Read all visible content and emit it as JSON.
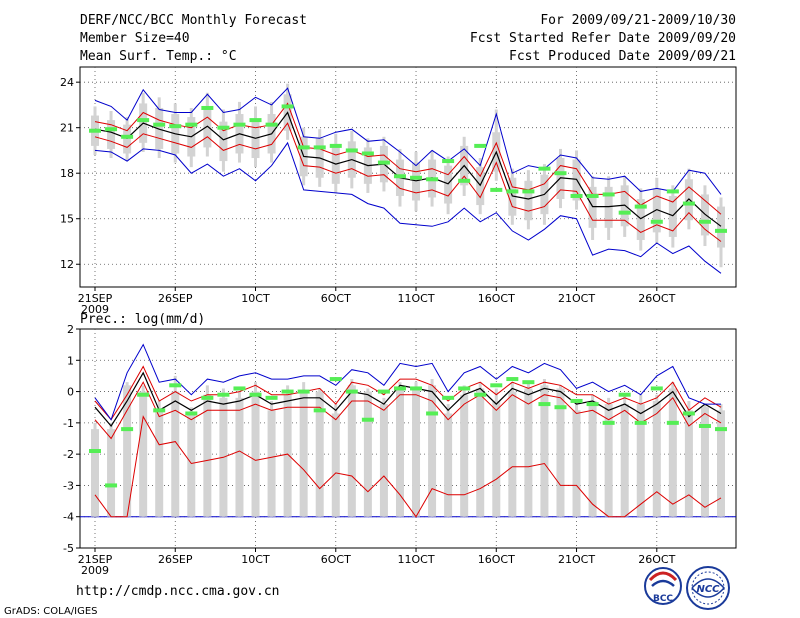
{
  "header": {
    "left": [
      "DERF/NCC/BCC Monthly Forecast",
      "Member Size=40",
      "Mean Surf. Temp.: °C"
    ],
    "right": [
      "For 2009/09/21-2009/10/30",
      "Fcst Started Refer Date 2009/09/20",
      "Fcst Produced Date 2009/09/21"
    ]
  },
  "panel2_label": "Prec.: log(mm/d)",
  "footer": {
    "url": "http://cmdp.ncc.cma.gov.cn",
    "credit": "GrADS: COLA/IGES"
  },
  "logos": {
    "bcc": "BCC",
    "ncc": "NCC"
  },
  "colors": {
    "box": "#d3d3d3",
    "median": "#55ee55",
    "mean": "#000000",
    "inner": "#dd0000",
    "outer": "#0000cc",
    "grid": "#555555"
  },
  "chart_data": [
    {
      "type": "line",
      "title": "Mean Surf. Temp.: °C",
      "ylim": [
        10.5,
        25
      ],
      "yticks": [
        12,
        15,
        18,
        21,
        24
      ],
      "xlabels": [
        "21SEP",
        "26SEP",
        "10CT",
        "6OCT",
        "11OCT",
        "16OCT",
        "21OCT",
        "26OCT"
      ],
      "xlabel_year": "2009",
      "xlabel_days": [
        1,
        6,
        11,
        16,
        21,
        26,
        31,
        36
      ],
      "days": 40,
      "series": [
        {
          "name": "mean",
          "values": [
            20.9,
            20.7,
            20.3,
            21.3,
            20.9,
            20.6,
            20.4,
            21.1,
            20.2,
            20.6,
            20.3,
            20.6,
            22.0,
            19.1,
            19.0,
            18.6,
            18.9,
            18.5,
            18.6,
            17.7,
            17.5,
            17.7,
            17.3,
            18.5,
            17.2,
            19.4,
            16.5,
            16.3,
            16.6,
            17.7,
            17.6,
            15.8,
            15.8,
            15.9,
            15.0,
            15.6,
            15.2,
            16.3,
            15.3,
            14.5
          ]
        },
        {
          "name": "inner_upper",
          "values": [
            21.4,
            21.2,
            20.8,
            22.0,
            21.5,
            21.2,
            21.0,
            21.7,
            20.8,
            21.2,
            21.0,
            21.2,
            22.6,
            19.7,
            19.6,
            19.2,
            19.5,
            19.1,
            19.2,
            18.3,
            18.1,
            18.3,
            17.9,
            19.1,
            17.8,
            20.0,
            17.1,
            16.9,
            17.3,
            18.5,
            18.3,
            16.6,
            16.6,
            16.8,
            15.9,
            16.5,
            16.1,
            17.1,
            16.2,
            15.3
          ]
        },
        {
          "name": "inner_lower",
          "values": [
            20.4,
            20.1,
            19.7,
            20.6,
            20.3,
            20.0,
            19.7,
            20.4,
            19.5,
            19.9,
            19.6,
            19.9,
            21.3,
            18.5,
            18.4,
            18.0,
            18.3,
            17.8,
            17.9,
            17.0,
            16.7,
            16.9,
            16.5,
            17.8,
            16.4,
            18.7,
            15.8,
            15.5,
            15.8,
            16.9,
            16.8,
            14.9,
            14.9,
            14.9,
            14.1,
            14.6,
            14.2,
            15.4,
            14.3,
            13.5
          ]
        },
        {
          "name": "outer_upper",
          "values": [
            22.8,
            22.4,
            21.5,
            23.5,
            22.2,
            22.0,
            22.0,
            23.2,
            22.0,
            22.2,
            23.0,
            22.5,
            23.6,
            20.4,
            20.3,
            20.7,
            20.9,
            20.1,
            20.2,
            19.4,
            18.5,
            19.5,
            18.8,
            19.6,
            18.5,
            21.9,
            18.0,
            18.5,
            18.3,
            19.2,
            19.0,
            17.7,
            17.6,
            17.8,
            16.8,
            17.0,
            16.8,
            18.2,
            18.0,
            16.6
          ]
        },
        {
          "name": "outer_lower",
          "values": [
            19.5,
            19.4,
            18.8,
            19.6,
            19.5,
            19.2,
            18.0,
            18.6,
            17.8,
            18.3,
            17.5,
            18.5,
            20.0,
            16.9,
            16.8,
            16.7,
            16.6,
            16.0,
            15.7,
            14.7,
            14.6,
            14.5,
            14.8,
            15.7,
            14.8,
            15.4,
            14.2,
            13.6,
            14.3,
            15.2,
            15.0,
            12.6,
            13.0,
            12.9,
            12.5,
            13.4,
            12.7,
            13.2,
            12.2,
            11.4
          ]
        }
      ],
      "boxes": {
        "high": [
          21.8,
          21.5,
          21.2,
          22.6,
          22.3,
          21.9,
          21.7,
          22.4,
          21.4,
          21.9,
          21.6,
          21.9,
          23.2,
          20.4,
          20.3,
          19.9,
          20.1,
          19.7,
          19.8,
          18.9,
          18.7,
          18.9,
          18.5,
          19.8,
          18.4,
          20.7,
          17.7,
          17.5,
          17.9,
          19.0,
          18.9,
          17.1,
          17.1,
          17.2,
          16.3,
          17.0,
          16.5,
          17.6,
          16.6,
          15.8
        ],
        "low": [
          19.8,
          19.6,
          19.3,
          20.0,
          19.6,
          19.3,
          19.1,
          19.7,
          18.8,
          19.3,
          19.0,
          19.3,
          20.8,
          17.8,
          17.7,
          17.3,
          17.7,
          17.3,
          17.4,
          16.5,
          16.2,
          16.4,
          16.0,
          17.2,
          15.9,
          18.1,
          15.2,
          14.9,
          15.3,
          16.3,
          16.2,
          14.4,
          14.4,
          14.5,
          13.6,
          14.1,
          13.8,
          14.9,
          13.9,
          13.1
        ],
        "whisker_high": [
          22.4,
          22.1,
          21.7,
          23.3,
          23.0,
          22.6,
          22.3,
          23.3,
          22.2,
          22.7,
          22.4,
          22.7,
          23.9,
          21.0,
          20.9,
          20.6,
          20.8,
          20.3,
          20.4,
          19.6,
          19.4,
          19.5,
          19.1,
          20.4,
          19.0,
          22.2,
          18.3,
          18.2,
          18.6,
          19.6,
          19.5,
          17.8,
          17.8,
          17.8,
          17.0,
          17.7,
          17.2,
          18.3,
          17.2,
          16.4
        ],
        "whisker_low": [
          19.2,
          19.0,
          18.8,
          19.4,
          19.0,
          18.7,
          18.4,
          19.1,
          18.1,
          18.7,
          18.4,
          18.7,
          20.2,
          17.2,
          17.1,
          16.7,
          17.0,
          16.7,
          16.8,
          15.8,
          15.5,
          15.8,
          15.3,
          16.5,
          15.3,
          17.5,
          14.6,
          14.3,
          14.6,
          15.7,
          15.6,
          13.6,
          13.6,
          13.8,
          12.9,
          13.4,
          13.1,
          14.3,
          13.2,
          11.8
        ],
        "median": [
          20.8,
          20.9,
          20.4,
          21.5,
          21.2,
          21.1,
          21.2,
          22.3,
          21.0,
          21.2,
          21.5,
          21.2,
          22.4,
          19.7,
          19.7,
          19.8,
          19.5,
          19.3,
          18.7,
          17.8,
          17.7,
          17.6,
          18.8,
          17.5,
          19.8,
          16.9,
          16.8,
          16.8,
          18.3,
          18.0,
          16.5,
          16.5,
          16.6,
          15.4,
          15.8,
          14.8,
          16.8,
          16.0,
          14.8,
          14.2
        ]
      }
    },
    {
      "type": "line",
      "title": "Prec.: log(mm/d)",
      "ylim": [
        -5,
        2
      ],
      "yticks": [
        -5,
        -4,
        -3,
        -2,
        -1,
        0,
        1,
        2
      ],
      "xlabels": [
        "21SEP",
        "26SEP",
        "10CT",
        "6OCT",
        "11OCT",
        "16OCT",
        "21OCT",
        "26OCT"
      ],
      "xlabel_year": "2009",
      "xlabel_days": [
        1,
        6,
        11,
        16,
        21,
        26,
        31,
        36
      ],
      "days": 40,
      "baseline": -4,
      "series": [
        {
          "name": "mean",
          "values": [
            -0.5,
            -1.1,
            -0.3,
            0.6,
            -0.6,
            -0.3,
            -0.6,
            -0.3,
            -0.4,
            -0.3,
            -0.1,
            -0.4,
            -0.3,
            -0.2,
            -0.2,
            -0.6,
            0.0,
            -0.1,
            -0.4,
            0.2,
            0.1,
            0.0,
            -0.6,
            -0.1,
            0.1,
            -0.4,
            0.1,
            -0.1,
            0.1,
            0.0,
            -0.4,
            -0.3,
            -0.6,
            -0.4,
            -0.7,
            -0.4,
            0.0,
            -0.8,
            -0.4,
            -0.7
          ]
        },
        {
          "name": "inner_upper",
          "values": [
            -0.3,
            -0.9,
            -0.1,
            0.8,
            -0.3,
            0.0,
            -0.3,
            -0.1,
            -0.1,
            0.0,
            0.2,
            -0.1,
            -0.1,
            0.0,
            0.1,
            -0.4,
            0.3,
            0.2,
            -0.1,
            0.4,
            0.4,
            0.2,
            -0.3,
            0.1,
            0.3,
            -0.1,
            0.3,
            0.1,
            0.3,
            0.2,
            -0.1,
            -0.1,
            -0.4,
            -0.2,
            -0.4,
            -0.2,
            0.3,
            -0.6,
            -0.2,
            -0.5
          ]
        },
        {
          "name": "inner_lower",
          "values": [
            -0.9,
            -1.5,
            -0.6,
            0.3,
            -0.8,
            -0.6,
            -0.9,
            -0.6,
            -0.6,
            -0.6,
            -0.4,
            -0.6,
            -0.5,
            -0.5,
            -0.5,
            -0.9,
            -0.3,
            -0.3,
            -0.6,
            -0.1,
            -0.1,
            -0.3,
            -0.9,
            -0.4,
            -0.1,
            -0.6,
            -0.1,
            -0.4,
            -0.1,
            -0.2,
            -0.7,
            -0.6,
            -0.9,
            -0.6,
            -1.0,
            -0.7,
            -0.2,
            -1.1,
            -0.7,
            -1.0
          ]
        },
        {
          "name": "extreme_lower",
          "values": [
            -3.3,
            -4.0,
            -4.0,
            -0.8,
            -1.7,
            -1.6,
            -2.3,
            -2.2,
            -2.1,
            -1.9,
            -2.2,
            -2.1,
            -2.0,
            -2.5,
            -3.1,
            -2.6,
            -2.7,
            -3.2,
            -2.7,
            -3.3,
            -4.0,
            -3.1,
            -3.3,
            -3.3,
            -3.1,
            -2.8,
            -2.4,
            -2.4,
            -2.3,
            -3.0,
            -3.0,
            -3.6,
            -4.0,
            -4.0,
            -3.6,
            -3.2,
            -3.6,
            -3.3,
            -3.7,
            -3.4
          ]
        },
        {
          "name": "outer_upper",
          "values": [
            -0.2,
            -0.9,
            0.6,
            1.5,
            0.3,
            0.4,
            -0.1,
            0.4,
            0.3,
            0.5,
            0.6,
            0.4,
            0.4,
            0.5,
            0.5,
            0.2,
            0.7,
            0.6,
            0.2,
            0.9,
            0.8,
            0.9,
            0.0,
            0.6,
            0.8,
            0.4,
            0.8,
            0.6,
            0.9,
            0.7,
            0.1,
            0.3,
            0.0,
            0.2,
            -0.1,
            0.5,
            0.8,
            -0.2,
            -0.4,
            -0.4
          ]
        }
      ],
      "boxes": {
        "high": [
          -1.2,
          -1.2,
          0.2,
          0.0,
          -0.6,
          0.0,
          -0.7,
          -0.1,
          -0.2,
          -0.2,
          0.0,
          -0.6,
          -0.1,
          0.0,
          0.0,
          -0.7,
          0.2,
          0.0,
          -0.4,
          0.1,
          0.1,
          0.2,
          -0.7,
          -0.1,
          0.1,
          -0.3,
          0.0,
          0.1,
          0.2,
          0.1,
          -0.6,
          -0.3,
          -0.4,
          -0.4,
          -0.4,
          -0.3,
          0.1,
          -0.6,
          -0.5,
          -0.6
        ],
        "low": [
          -4.0,
          -4.0,
          -4.0,
          -4.0,
          -4.0,
          -4.0,
          -4.0,
          -4.0,
          -4.0,
          -4.0,
          -4.0,
          -4.0,
          -4.0,
          -4.0,
          -4.0,
          -4.0,
          -4.0,
          -4.0,
          -4.0,
          -4.0,
          -4.0,
          -4.0,
          -4.0,
          -4.0,
          -4.0,
          -4.0,
          -4.0,
          -4.0,
          -4.0,
          -4.0,
          -4.0,
          -4.0,
          -4.0,
          -4.0,
          -4.0,
          -4.0,
          -4.0,
          -4.0,
          -4.0,
          -4.0
        ],
        "whisker_high": [
          -1.0,
          -1.0,
          0.3,
          0.2,
          -0.3,
          0.5,
          -0.5,
          0.2,
          0.1,
          0.0,
          0.3,
          -0.3,
          0.2,
          0.3,
          0.1,
          -0.4,
          0.4,
          0.1,
          -0.2,
          0.3,
          0.3,
          0.4,
          -0.4,
          0.2,
          0.3,
          0.1,
          0.3,
          0.3,
          0.4,
          0.2,
          -0.3,
          -0.1,
          -0.2,
          -0.1,
          -0.1,
          -0.1,
          0.3,
          -0.3,
          -0.4,
          -0.4
        ],
        "whisker_low": [
          -4.0,
          -4.0,
          -4.0,
          -4.0,
          -4.0,
          -4.0,
          -4.0,
          -4.0,
          -4.0,
          -4.0,
          -4.0,
          -4.0,
          -4.0,
          -4.0,
          -4.0,
          -4.0,
          -4.0,
          -4.0,
          -4.0,
          -4.0,
          -4.0,
          -4.0,
          -4.0,
          -4.0,
          -4.0,
          -4.0,
          -4.0,
          -4.0,
          -4.0,
          -4.0,
          -4.0,
          -4.0,
          -4.0,
          -4.0,
          -4.0,
          -4.0,
          -4.0,
          -4.0,
          -4.0,
          -4.0
        ],
        "median": [
          -1.9,
          -3.0,
          -1.2,
          -0.1,
          -0.6,
          0.2,
          -0.7,
          -0.2,
          -0.1,
          0.1,
          -0.1,
          -0.2,
          0.0,
          0.0,
          -0.6,
          0.4,
          0.0,
          -0.9,
          0.0,
          0.1,
          0.1,
          -0.7,
          -0.2,
          0.1,
          -0.1,
          0.2,
          0.4,
          0.3,
          -0.4,
          -0.5,
          -0.3,
          -0.4,
          -1.0,
          -0.1,
          -1.0,
          0.1,
          -1.0,
          -0.7,
          -1.1,
          -1.2
        ]
      }
    }
  ]
}
